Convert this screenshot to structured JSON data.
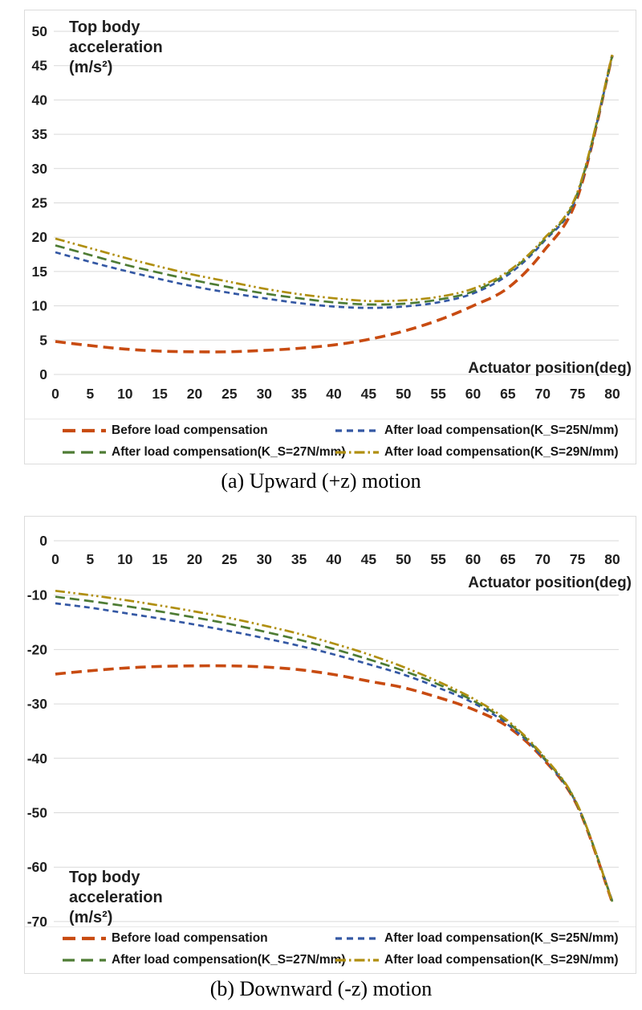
{
  "series_styles": {
    "before": {
      "color": "#c84b11",
      "dash": "13 7",
      "width": 3.6,
      "legend_dash": "16 8",
      "legend_width": 4.2
    },
    "k25": {
      "color": "#3458a4",
      "dash": "7 5",
      "width": 2.7,
      "legend_dash": "8 6",
      "legend_width": 3.2
    },
    "k27": {
      "color": "#4e7c34",
      "dash": "12 6",
      "width": 2.7,
      "legend_dash": "15 8",
      "legend_width": 3.2
    },
    "k29": {
      "color": "#b08f10",
      "dash": "12 4 2.5 4 2.5 4",
      "width": 2.7,
      "legend_dash": "13 4 2.5 4",
      "legend_width": 3.2
    }
  },
  "grid_color": "#d9d9d9",
  "chart_data": [
    {
      "id": "upward",
      "type": "line",
      "title": "Top body acceleration (m/s²)",
      "title_lines": [
        "Top body",
        "acceleration",
        "(m/s²)"
      ],
      "ylabel": "Top body acceleration (m/s²)",
      "xlabel": "Actuator position(deg)",
      "caption": "(a) Upward (+z) motion",
      "ylim": [
        0,
        50
      ],
      "y_ticks": [
        0,
        5,
        10,
        15,
        20,
        25,
        30,
        35,
        40,
        45,
        50
      ],
      "x_ticks": [
        0,
        5,
        10,
        15,
        20,
        25,
        30,
        35,
        40,
        45,
        50,
        55,
        60,
        65,
        70,
        75,
        80
      ],
      "grid": true,
      "legend_position": "bottom",
      "x": [
        0,
        5,
        10,
        15,
        20,
        25,
        30,
        35,
        40,
        45,
        50,
        55,
        60,
        65,
        70,
        75,
        80
      ],
      "series": [
        {
          "key": "before",
          "name": "Before load compensation",
          "values": [
            4.8,
            4.2,
            3.7,
            3.4,
            3.3,
            3.3,
            3.5,
            3.8,
            4.3,
            5.1,
            6.3,
            7.9,
            10.0,
            12.6,
            17.8,
            25.8,
            46.5
          ]
        },
        {
          "key": "k25",
          "name": "After load compensation(K_S=25N/mm)",
          "values": [
            17.8,
            16.4,
            15.1,
            13.9,
            12.8,
            11.9,
            11.1,
            10.4,
            9.9,
            9.7,
            9.9,
            10.5,
            11.8,
            14.5,
            19.2,
            26.2,
            46.4
          ]
        },
        {
          "key": "k27",
          "name": "After load compensation(K_S=27N/mm)",
          "values": [
            18.8,
            17.4,
            16.0,
            14.8,
            13.7,
            12.7,
            11.8,
            11.1,
            10.5,
            10.2,
            10.3,
            10.9,
            12.1,
            14.8,
            19.4,
            26.4,
            46.5
          ]
        },
        {
          "key": "k29",
          "name": "After load compensation(K_S=29N/mm)",
          "values": [
            19.8,
            18.4,
            17.0,
            15.7,
            14.5,
            13.5,
            12.5,
            11.7,
            11.1,
            10.7,
            10.8,
            11.3,
            12.5,
            15.0,
            19.6,
            26.6,
            46.6
          ]
        }
      ]
    },
    {
      "id": "downward",
      "type": "line",
      "title": "Top body acceleration (m/s²)",
      "title_lines": [
        "Top body",
        "acceleration",
        "(m/s²)"
      ],
      "ylabel": "Top body acceleration (m/s²)",
      "xlabel": "Actuator position(deg)",
      "caption": "(b) Downward (-z) motion",
      "ylim": [
        -70,
        0
      ],
      "y_ticks": [
        0,
        -10,
        -20,
        -30,
        -40,
        -50,
        -60,
        -70
      ],
      "x_ticks": [
        0,
        5,
        10,
        15,
        20,
        25,
        30,
        35,
        40,
        45,
        50,
        55,
        60,
        65,
        70,
        75,
        80
      ],
      "grid": true,
      "legend_position": "bottom",
      "x": [
        0,
        5,
        10,
        15,
        20,
        25,
        30,
        35,
        40,
        45,
        50,
        55,
        60,
        65,
        70,
        75,
        80
      ],
      "series": [
        {
          "key": "before",
          "name": "Before load compensation",
          "values": [
            -24.5,
            -23.9,
            -23.4,
            -23.1,
            -23.0,
            -23.0,
            -23.2,
            -23.7,
            -24.6,
            -25.8,
            -27.0,
            -28.8,
            -31.0,
            -34.2,
            -40.0,
            -48.8,
            -66.5
          ]
        },
        {
          "key": "k25",
          "name": "After load compensation(K_S=25N/mm)",
          "values": [
            -11.5,
            -12.3,
            -13.3,
            -14.3,
            -15.4,
            -16.6,
            -17.9,
            -19.3,
            -20.9,
            -22.7,
            -24.6,
            -27.0,
            -29.8,
            -33.8,
            -39.8,
            -48.7,
            -66.2
          ]
        },
        {
          "key": "k27",
          "name": "After load compensation(K_S=27N/mm)",
          "values": [
            -10.3,
            -11.1,
            -12.0,
            -13.0,
            -14.1,
            -15.3,
            -16.7,
            -18.2,
            -19.9,
            -21.8,
            -23.9,
            -26.4,
            -29.4,
            -33.4,
            -39.6,
            -48.6,
            -66.3
          ]
        },
        {
          "key": "k29",
          "name": "After load compensation(K_S=29N/mm)",
          "values": [
            -9.2,
            -10.0,
            -10.9,
            -11.9,
            -13.0,
            -14.2,
            -15.6,
            -17.1,
            -18.9,
            -20.9,
            -23.2,
            -25.9,
            -29.0,
            -33.1,
            -39.4,
            -48.5,
            -66.4
          ]
        }
      ]
    }
  ]
}
